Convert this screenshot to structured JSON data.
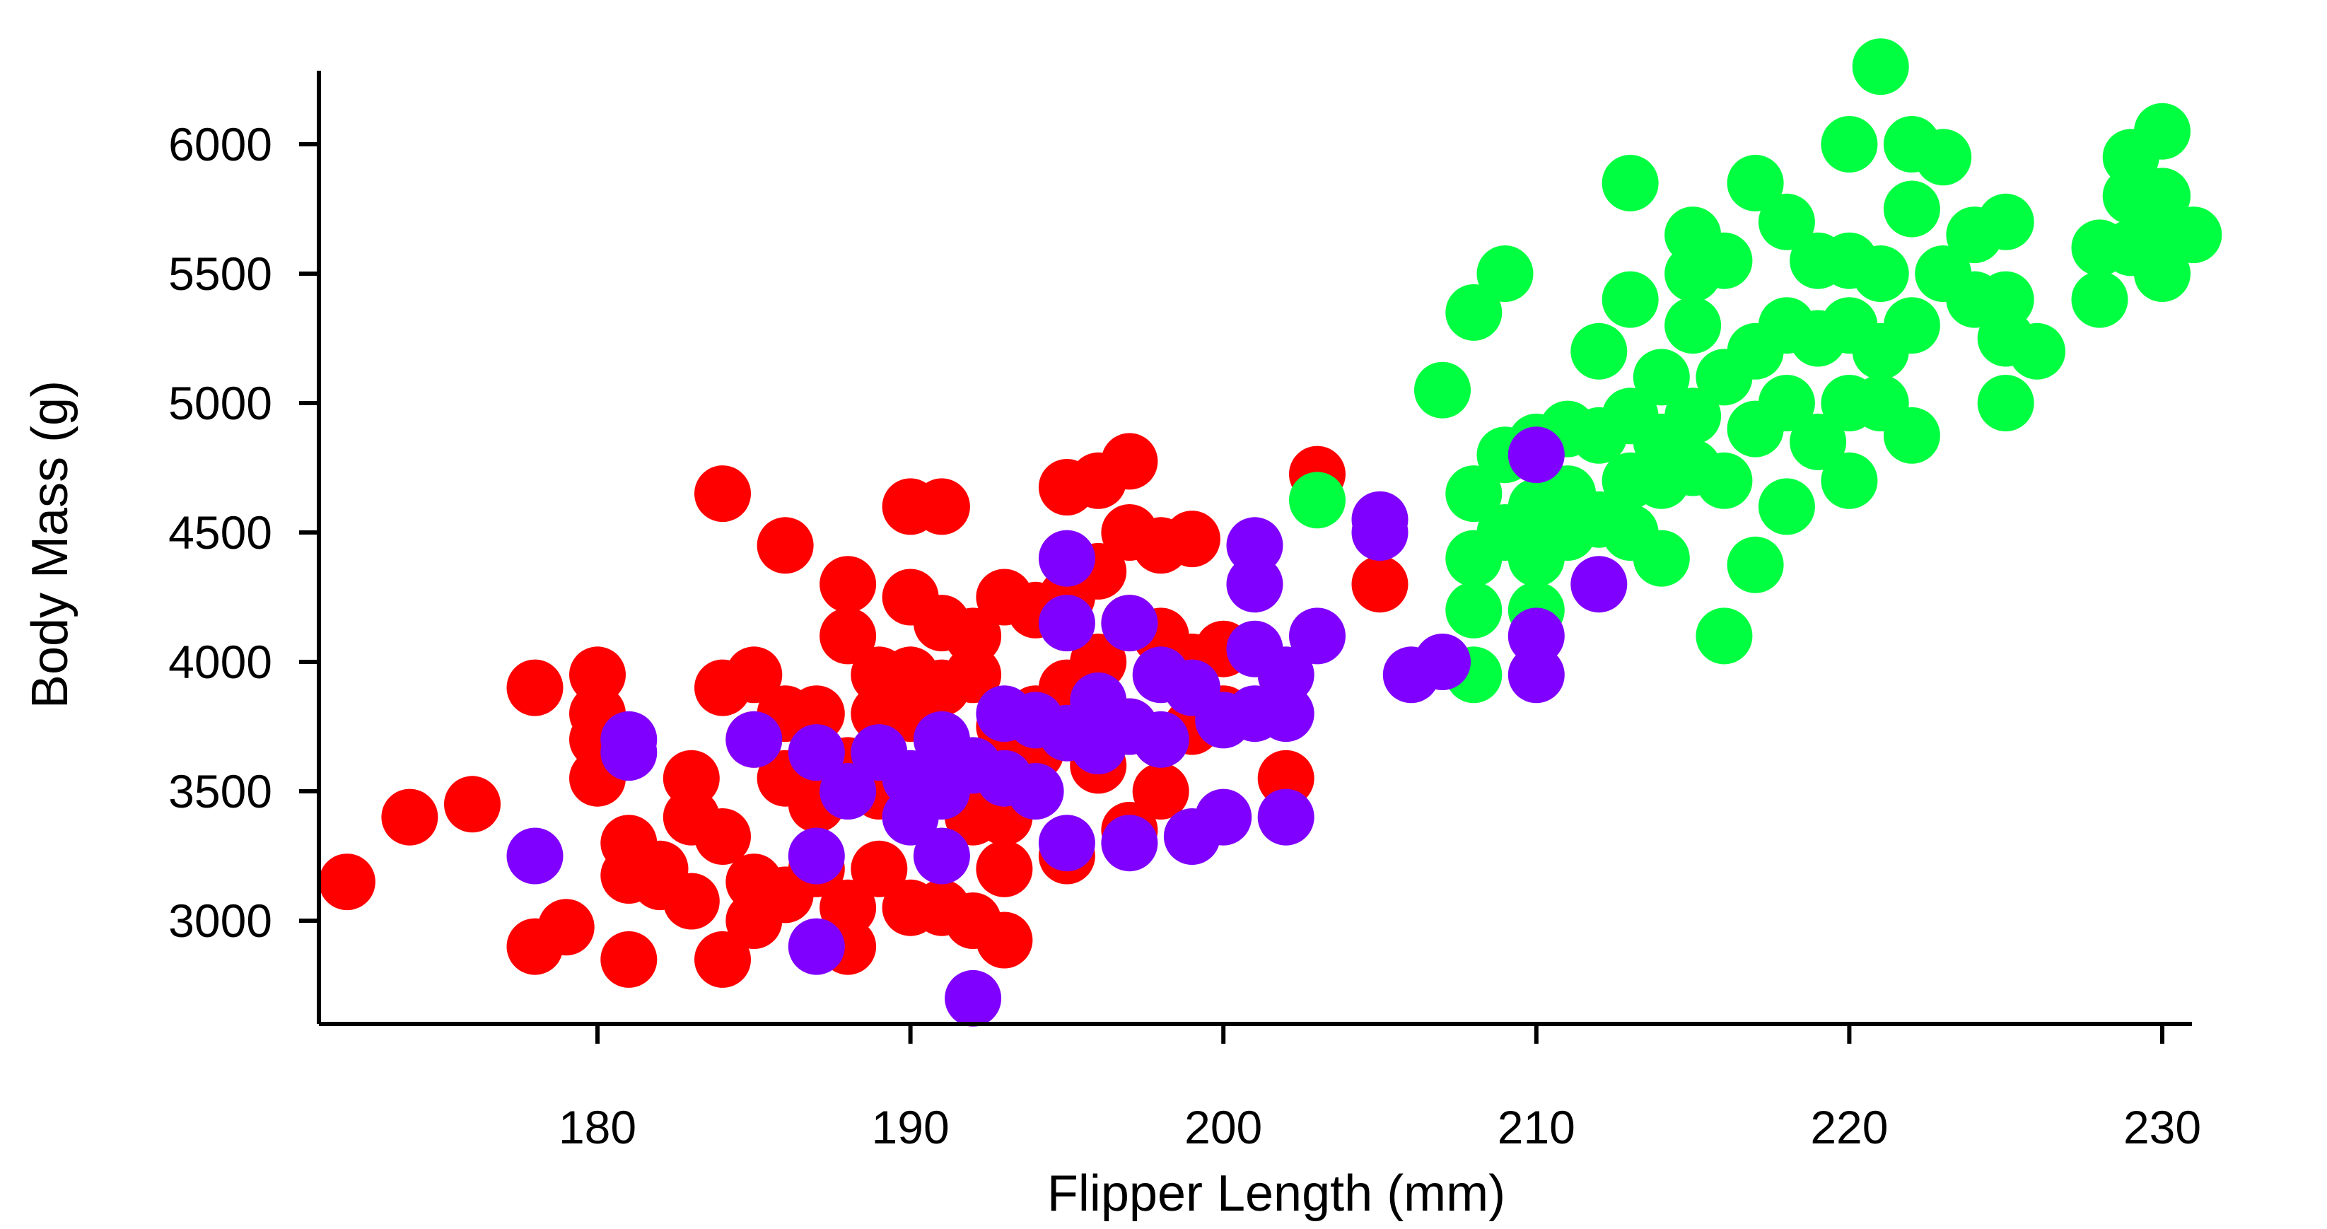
{
  "chart_data": {
    "type": "scatter",
    "title": "",
    "xlabel": "Flipper Length (mm)",
    "ylabel": "Body Mass (g)",
    "xlim": [
      171,
      231
    ],
    "ylim": [
      2700,
      6300
    ],
    "xticks": [
      180,
      190,
      200,
      210,
      220,
      230
    ],
    "yticks": [
      3000,
      3500,
      4000,
      4500,
      5000,
      5500,
      6000
    ],
    "xtick_labels": [
      "180",
      "190",
      "200",
      "210",
      "220",
      "230"
    ],
    "ytick_labels": [
      "3000",
      "3500",
      "4000",
      "4500",
      "5000",
      "5500",
      "6000"
    ],
    "grid": false,
    "legend": "none",
    "series": [
      {
        "color": "#ff0000",
        "points": [
          [
            172,
            3150
          ],
          [
            174,
            3400
          ],
          [
            176,
            3450
          ],
          [
            178,
            3900
          ],
          [
            178,
            2900
          ],
          [
            179,
            2975
          ],
          [
            180,
            3950
          ],
          [
            180,
            3800
          ],
          [
            180,
            3700
          ],
          [
            180,
            3550
          ],
          [
            181,
            3300
          ],
          [
            181,
            3175
          ],
          [
            181,
            2850
          ],
          [
            182,
            3200
          ],
          [
            182,
            3150
          ],
          [
            183,
            3400
          ],
          [
            183,
            3550
          ],
          [
            183,
            3075
          ],
          [
            184,
            4650
          ],
          [
            184,
            3900
          ],
          [
            184,
            3325
          ],
          [
            184,
            2850
          ],
          [
            185,
            3950
          ],
          [
            185,
            3700
          ],
          [
            185,
            3150
          ],
          [
            185,
            3000
          ],
          [
            186,
            4450
          ],
          [
            186,
            3800
          ],
          [
            186,
            3550
          ],
          [
            186,
            3100
          ],
          [
            187,
            3800
          ],
          [
            187,
            3650
          ],
          [
            187,
            3450
          ],
          [
            187,
            3200
          ],
          [
            188,
            4300
          ],
          [
            188,
            4100
          ],
          [
            188,
            3600
          ],
          [
            188,
            3050
          ],
          [
            188,
            2900
          ],
          [
            189,
            3950
          ],
          [
            189,
            3800
          ],
          [
            189,
            3500
          ],
          [
            189,
            3200
          ],
          [
            190,
            4600
          ],
          [
            190,
            4250
          ],
          [
            190,
            3950
          ],
          [
            190,
            3800
          ],
          [
            190,
            3450
          ],
          [
            190,
            3050
          ],
          [
            191,
            4600
          ],
          [
            191,
            4150
          ],
          [
            191,
            3900
          ],
          [
            191,
            3550
          ],
          [
            191,
            3050
          ],
          [
            192,
            4100
          ],
          [
            192,
            3950
          ],
          [
            192,
            3400
          ],
          [
            192,
            3000
          ],
          [
            193,
            4250
          ],
          [
            193,
            3750
          ],
          [
            193,
            3400
          ],
          [
            193,
            3200
          ],
          [
            193,
            2925
          ],
          [
            194,
            4200
          ],
          [
            194,
            3800
          ],
          [
            194,
            3650
          ],
          [
            195,
            4675
          ],
          [
            195,
            4250
          ],
          [
            195,
            3900
          ],
          [
            195,
            3250
          ],
          [
            196,
            4700
          ],
          [
            196,
            4350
          ],
          [
            196,
            4000
          ],
          [
            196,
            3600
          ],
          [
            197,
            4775
          ],
          [
            197,
            4500
          ],
          [
            197,
            4150
          ],
          [
            197,
            3750
          ],
          [
            197,
            3350
          ],
          [
            198,
            4450
          ],
          [
            198,
            4100
          ],
          [
            198,
            3500
          ],
          [
            199,
            4475
          ],
          [
            199,
            4000
          ],
          [
            199,
            3750
          ],
          [
            200,
            4050
          ],
          [
            200,
            3800
          ],
          [
            202,
            3550
          ],
          [
            203,
            4725
          ],
          [
            205,
            4300
          ]
        ]
      },
      {
        "color": "#00ff40",
        "points": [
          [
            203,
            4625
          ],
          [
            207,
            5050
          ],
          [
            208,
            5350
          ],
          [
            208,
            4650
          ],
          [
            208,
            4400
          ],
          [
            208,
            4200
          ],
          [
            208,
            3950
          ],
          [
            209,
            5500
          ],
          [
            209,
            4800
          ],
          [
            209,
            4500
          ],
          [
            210,
            4850
          ],
          [
            210,
            4600
          ],
          [
            210,
            4400
          ],
          [
            210,
            4200
          ],
          [
            211,
            4900
          ],
          [
            211,
            4650
          ],
          [
            211,
            4500
          ],
          [
            212,
            5200
          ],
          [
            212,
            4875
          ],
          [
            212,
            4550
          ],
          [
            213,
            5850
          ],
          [
            213,
            5400
          ],
          [
            213,
            4950
          ],
          [
            213,
            4700
          ],
          [
            213,
            4500
          ],
          [
            214,
            5100
          ],
          [
            214,
            4850
          ],
          [
            214,
            4400
          ],
          [
            214,
            4700
          ],
          [
            215,
            5650
          ],
          [
            215,
            5500
          ],
          [
            215,
            5300
          ],
          [
            215,
            4950
          ],
          [
            215,
            4750
          ],
          [
            216,
            5550
          ],
          [
            216,
            5100
          ],
          [
            216,
            4700
          ],
          [
            216,
            4100
          ],
          [
            217,
            5850
          ],
          [
            217,
            5200
          ],
          [
            217,
            4900
          ],
          [
            217,
            4375
          ],
          [
            218,
            5700
          ],
          [
            218,
            5300
          ],
          [
            218,
            5000
          ],
          [
            218,
            4600
          ],
          [
            219,
            5550
          ],
          [
            219,
            5250
          ],
          [
            219,
            4850
          ],
          [
            220,
            6000
          ],
          [
            220,
            5550
          ],
          [
            220,
            5300
          ],
          [
            220,
            5000
          ],
          [
            220,
            4700
          ],
          [
            221,
            6300
          ],
          [
            221,
            5500
          ],
          [
            221,
            5200
          ],
          [
            221,
            5000
          ],
          [
            222,
            6000
          ],
          [
            222,
            5750
          ],
          [
            222,
            5300
          ],
          [
            222,
            4875
          ],
          [
            223,
            5950
          ],
          [
            223,
            5500
          ],
          [
            224,
            5650
          ],
          [
            224,
            5400
          ],
          [
            225,
            5700
          ],
          [
            225,
            5400
          ],
          [
            225,
            5250
          ],
          [
            225,
            5000
          ],
          [
            226,
            5200
          ],
          [
            228,
            5600
          ],
          [
            228,
            5400
          ],
          [
            229,
            5950
          ],
          [
            229,
            5800
          ],
          [
            229,
            5600
          ],
          [
            230,
            6050
          ],
          [
            230,
            5800
          ],
          [
            230,
            5500
          ],
          [
            230,
            5700
          ],
          [
            231,
            5650
          ]
        ]
      },
      {
        "color": "#8000ff",
        "points": [
          [
            178,
            3250
          ],
          [
            181,
            3700
          ],
          [
            181,
            3650
          ],
          [
            185,
            3700
          ],
          [
            187,
            3650
          ],
          [
            187,
            3250
          ],
          [
            187,
            2900
          ],
          [
            188,
            3500
          ],
          [
            189,
            3650
          ],
          [
            190,
            3400
          ],
          [
            190,
            3550
          ],
          [
            191,
            3700
          ],
          [
            191,
            3500
          ],
          [
            191,
            3250
          ],
          [
            192,
            3600
          ],
          [
            192,
            2700
          ],
          [
            193,
            3800
          ],
          [
            193,
            3550
          ],
          [
            194,
            3775
          ],
          [
            194,
            3500
          ],
          [
            195,
            4400
          ],
          [
            195,
            4150
          ],
          [
            195,
            3725
          ],
          [
            195,
            3300
          ],
          [
            196,
            3850
          ],
          [
            196,
            3675
          ],
          [
            197,
            4150
          ],
          [
            197,
            3750
          ],
          [
            197,
            3300
          ],
          [
            198,
            3950
          ],
          [
            198,
            3700
          ],
          [
            199,
            3900
          ],
          [
            199,
            3325
          ],
          [
            200,
            3775
          ],
          [
            200,
            3400
          ],
          [
            201,
            4450
          ],
          [
            201,
            4300
          ],
          [
            201,
            4050
          ],
          [
            201,
            3800
          ],
          [
            202,
            3950
          ],
          [
            202,
            3800
          ],
          [
            202,
            3400
          ],
          [
            203,
            4100
          ],
          [
            205,
            4550
          ],
          [
            205,
            4500
          ],
          [
            206,
            3950
          ],
          [
            207,
            4000
          ],
          [
            210,
            4800
          ],
          [
            210,
            4100
          ],
          [
            210,
            3950
          ],
          [
            212,
            4300
          ]
        ]
      }
    ]
  }
}
